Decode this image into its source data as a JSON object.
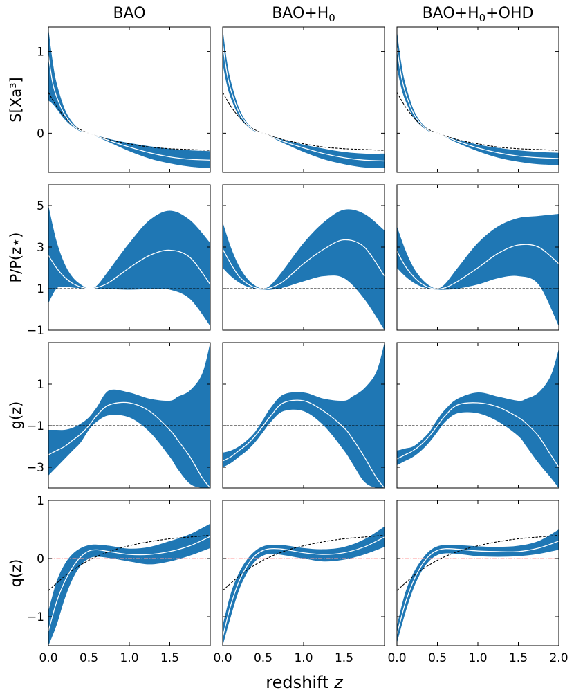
{
  "chart_data": {
    "type": "area",
    "column_titles": [
      {
        "base": "BAO",
        "sub": "",
        "rest": ""
      },
      {
        "base": "BAO+H",
        "sub": "0",
        "rest": ""
      },
      {
        "base": "BAO+H",
        "sub": "0",
        "rest": "+OHD"
      }
    ],
    "xlabel": {
      "text": "redshift ",
      "var": "z"
    },
    "x_ticks": [
      "0.0",
      "0.5",
      "1.0",
      "1.5",
      "2.0"
    ],
    "x_tick_values": [
      0,
      0.5,
      1.0,
      1.5,
      2.0
    ],
    "xlim": [
      0,
      2.0
    ],
    "colors": {
      "band": "#1f77b4",
      "median": "#ffffff",
      "reference": "#000000",
      "zero_line": "#ff9999"
    },
    "rows": [
      {
        "ylabel": "S[Xa³]",
        "ylim": [
          -0.48,
          1.3
        ],
        "y_ticks": [
          "1",
          "0"
        ],
        "y_tick_values": [
          1,
          0
        ],
        "reference": {
          "x": [
            0,
            0.1,
            0.2,
            0.3,
            0.4,
            0.5,
            0.75,
            1.0,
            1.25,
            1.5,
            1.75,
            2.0
          ],
          "y": [
            0.5,
            0.33,
            0.2,
            0.1,
            0.04,
            0.0,
            -0.08,
            -0.13,
            -0.17,
            -0.19,
            -0.2,
            -0.21
          ]
        },
        "panels": [
          {
            "x": [
              0,
              0.05,
              0.1,
              0.2,
              0.3,
              0.4,
              0.5,
              0.75,
              1.0,
              1.25,
              1.5,
              1.75,
              2.0
            ],
            "median": [
              0.95,
              0.63,
              0.45,
              0.23,
              0.1,
              0.03,
              0.0,
              -0.09,
              -0.17,
              -0.24,
              -0.29,
              -0.32,
              -0.33
            ],
            "lower": [
              0.4,
              0.36,
              0.3,
              0.17,
              0.08,
              0.02,
              0.0,
              -0.11,
              -0.22,
              -0.31,
              -0.37,
              -0.41,
              -0.43
            ],
            "upper": [
              1.28,
              0.9,
              0.62,
              0.3,
              0.13,
              0.04,
              0.0,
              -0.07,
              -0.12,
              -0.16,
              -0.19,
              -0.21,
              -0.22
            ]
          },
          {
            "x": [
              0,
              0.05,
              0.1,
              0.2,
              0.3,
              0.4,
              0.5,
              0.75,
              1.0,
              1.25,
              1.5,
              1.75,
              2.0
            ],
            "median": [
              1.1,
              0.75,
              0.53,
              0.26,
              0.11,
              0.03,
              0.0,
              -0.1,
              -0.18,
              -0.25,
              -0.3,
              -0.33,
              -0.34
            ],
            "lower": [
              0.85,
              0.6,
              0.43,
              0.21,
              0.09,
              0.02,
              0.0,
              -0.12,
              -0.23,
              -0.32,
              -0.38,
              -0.42,
              -0.43
            ],
            "upper": [
              1.28,
              0.9,
              0.64,
              0.31,
              0.13,
              0.04,
              0.0,
              -0.08,
              -0.14,
              -0.19,
              -0.23,
              -0.25,
              -0.25
            ]
          },
          {
            "x": [
              0,
              0.05,
              0.1,
              0.2,
              0.3,
              0.4,
              0.5,
              0.75,
              1.0,
              1.25,
              1.5,
              1.75,
              2.0
            ],
            "median": [
              1.05,
              0.72,
              0.51,
              0.25,
              0.11,
              0.03,
              0.0,
              -0.1,
              -0.18,
              -0.24,
              -0.28,
              -0.3,
              -0.31
            ],
            "lower": [
              0.8,
              0.57,
              0.41,
              0.2,
              0.09,
              0.02,
              0.0,
              -0.12,
              -0.22,
              -0.3,
              -0.35,
              -0.38,
              -0.39
            ],
            "upper": [
              1.25,
              0.88,
              0.62,
              0.3,
              0.13,
              0.04,
              0.0,
              -0.08,
              -0.14,
              -0.18,
              -0.21,
              -0.23,
              -0.24
            ]
          }
        ]
      },
      {
        "ylabel": "P/P(z⋆)",
        "ylim": [
          -1,
          6
        ],
        "y_ticks": [
          "5",
          "3",
          "1",
          "−1"
        ],
        "y_tick_values": [
          5,
          3,
          1,
          -1
        ],
        "reference": {
          "x": [
            0,
            2.0
          ],
          "y": [
            1,
            1
          ]
        },
        "panels": [
          {
            "x": [
              0,
              0.1,
              0.2,
              0.3,
              0.4,
              0.5,
              0.6,
              0.75,
              1.0,
              1.25,
              1.5,
              1.75,
              2.0
            ],
            "median": [
              2.6,
              2.0,
              1.55,
              1.25,
              1.08,
              1.0,
              1.05,
              1.3,
              2.0,
              2.6,
              2.85,
              2.5,
              1.2
            ],
            "lower": [
              0.3,
              1.0,
              1.1,
              1.05,
              1.02,
              1.0,
              1.0,
              0.98,
              0.95,
              0.98,
              0.95,
              0.5,
              -0.8
            ],
            "upper": [
              5.0,
              3.3,
              2.2,
              1.55,
              1.2,
              1.0,
              1.15,
              1.9,
              3.2,
              4.3,
              4.75,
              4.3,
              3.2
            ]
          },
          {
            "x": [
              0,
              0.1,
              0.2,
              0.3,
              0.4,
              0.5,
              0.6,
              0.75,
              1.0,
              1.25,
              1.5,
              1.75,
              2.0
            ],
            "median": [
              2.9,
              2.2,
              1.6,
              1.25,
              1.05,
              0.98,
              1.05,
              1.35,
              2.2,
              2.9,
              3.35,
              3.0,
              1.6
            ],
            "lower": [
              2.0,
              1.6,
              1.3,
              1.1,
              1.0,
              0.95,
              0.95,
              1.05,
              1.35,
              1.6,
              1.5,
              0.5,
              -1.0
            ],
            "upper": [
              4.2,
              3.0,
              2.1,
              1.5,
              1.15,
              1.0,
              1.2,
              1.9,
              3.2,
              4.2,
              4.8,
              4.6,
              3.8
            ]
          },
          {
            "x": [
              0,
              0.1,
              0.2,
              0.3,
              0.4,
              0.5,
              0.6,
              0.75,
              1.0,
              1.25,
              1.5,
              1.75,
              2.0
            ],
            "median": [
              2.8,
              2.1,
              1.6,
              1.25,
              1.05,
              0.98,
              1.05,
              1.35,
              2.0,
              2.7,
              3.1,
              3.0,
              2.2
            ],
            "lower": [
              2.0,
              1.6,
              1.3,
              1.1,
              1.0,
              0.95,
              0.95,
              1.0,
              1.2,
              1.5,
              1.6,
              1.2,
              -0.8
            ],
            "upper": [
              4.0,
              2.9,
              2.05,
              1.5,
              1.15,
              1.0,
              1.25,
              2.0,
              3.2,
              4.0,
              4.4,
              4.5,
              4.6
            ]
          }
        ]
      },
      {
        "ylabel": "g(z)",
        "ylim": [
          -4,
          3
        ],
        "y_ticks": [
          "1",
          "−1",
          "−3"
        ],
        "y_tick_values": [
          1,
          -1,
          -3
        ],
        "reference": {
          "x": [
            0,
            2.0
          ],
          "y": [
            -1,
            -1
          ]
        },
        "panels": [
          {
            "x": [
              0,
              0.1,
              0.2,
              0.3,
              0.4,
              0.5,
              0.6,
              0.75,
              1.0,
              1.25,
              1.5,
              1.6,
              1.75,
              1.9,
              2.0
            ],
            "median": [
              -2.4,
              -2.2,
              -2.0,
              -1.7,
              -1.4,
              -1.0,
              -0.5,
              0.0,
              0.1,
              -0.3,
              -1.2,
              -1.7,
              -2.5,
              -3.5,
              -4.0
            ],
            "lower": [
              -3.4,
              -3.0,
              -2.6,
              -2.2,
              -1.8,
              -1.2,
              -0.8,
              -0.5,
              -0.6,
              -1.3,
              -2.5,
              -3.1,
              -3.8,
              -4.0,
              -4.0
            ],
            "upper": [
              -1.2,
              -1.2,
              -1.2,
              -1.1,
              -0.9,
              -0.6,
              -0.1,
              0.7,
              0.6,
              0.3,
              0.2,
              0.4,
              0.7,
              1.5,
              3.0
            ]
          },
          {
            "x": [
              0,
              0.1,
              0.2,
              0.3,
              0.4,
              0.5,
              0.6,
              0.75,
              1.0,
              1.25,
              1.5,
              1.6,
              1.75,
              1.9,
              2.0
            ],
            "median": [
              -2.7,
              -2.5,
              -2.2,
              -1.9,
              -1.5,
              -1.0,
              -0.5,
              0.1,
              0.2,
              -0.3,
              -1.1,
              -1.6,
              -2.5,
              -3.5,
              -4.0
            ],
            "lower": [
              -3.0,
              -2.8,
              -2.5,
              -2.2,
              -1.8,
              -1.3,
              -0.8,
              -0.3,
              -0.3,
              -1.0,
              -2.2,
              -2.8,
              -3.7,
              -4.0,
              -4.0
            ],
            "upper": [
              -2.3,
              -2.2,
              -2.0,
              -1.7,
              -1.3,
              -0.7,
              -0.1,
              0.5,
              0.6,
              0.3,
              0.2,
              0.4,
              0.8,
              1.6,
              3.0
            ]
          },
          {
            "x": [
              0,
              0.1,
              0.2,
              0.3,
              0.4,
              0.5,
              0.6,
              0.75,
              1.0,
              1.25,
              1.5,
              1.6,
              1.75,
              1.9,
              2.0
            ],
            "median": [
              -2.6,
              -2.4,
              -2.2,
              -1.9,
              -1.5,
              -1.0,
              -0.5,
              0.0,
              0.1,
              -0.1,
              -0.6,
              -0.9,
              -1.5,
              -2.4,
              -3.0
            ],
            "lower": [
              -2.9,
              -2.7,
              -2.5,
              -2.2,
              -1.8,
              -1.3,
              -0.8,
              -0.4,
              -0.4,
              -0.8,
              -1.5,
              -2.0,
              -2.8,
              -3.5,
              -4.0
            ],
            "upper": [
              -2.2,
              -2.1,
              -2.0,
              -1.7,
              -1.3,
              -0.7,
              -0.2,
              0.3,
              0.6,
              0.4,
              0.2,
              0.3,
              0.6,
              1.4,
              2.7
            ]
          }
        ]
      },
      {
        "ylabel": "q(z)",
        "ylim": [
          -1.5,
          1.0
        ],
        "y_ticks": [
          "1",
          "0",
          "−1"
        ],
        "y_tick_values": [
          1,
          0,
          -1
        ],
        "reference": {
          "x": [
            0,
            0.25,
            0.5,
            0.75,
            1.0,
            1.25,
            1.5,
            1.75,
            2.0
          ],
          "y": [
            -0.55,
            -0.25,
            -0.03,
            0.12,
            0.22,
            0.29,
            0.34,
            0.37,
            0.4
          ]
        },
        "zero_line": {
          "x": [
            0,
            2.0
          ],
          "y": [
            0,
            0
          ]
        },
        "panels": [
          {
            "x": [
              0,
              0.1,
              0.2,
              0.3,
              0.4,
              0.5,
              0.6,
              0.75,
              1.0,
              1.25,
              1.5,
              1.75,
              2.0
            ],
            "median": [
              -1.25,
              -0.75,
              -0.4,
              -0.15,
              0.03,
              0.13,
              0.15,
              0.12,
              0.07,
              0.07,
              0.12,
              0.22,
              0.38
            ],
            "lower": [
              -1.5,
              -1.15,
              -0.7,
              -0.35,
              -0.12,
              0.0,
              0.03,
              0.01,
              -0.05,
              -0.1,
              -0.05,
              0.05,
              0.18
            ],
            "upper": [
              -0.9,
              -0.4,
              -0.1,
              0.08,
              0.18,
              0.23,
              0.24,
              0.22,
              0.17,
              0.2,
              0.3,
              0.42,
              0.6
            ]
          },
          {
            "x": [
              0,
              0.1,
              0.2,
              0.3,
              0.4,
              0.5,
              0.6,
              0.75,
              1.0,
              1.25,
              1.5,
              1.75,
              2.0
            ],
            "median": [
              -1.35,
              -0.8,
              -0.4,
              -0.13,
              0.05,
              0.14,
              0.17,
              0.16,
              0.1,
              0.07,
              0.1,
              0.2,
              0.37
            ],
            "lower": [
              -1.5,
              -1.0,
              -0.55,
              -0.25,
              -0.05,
              0.05,
              0.08,
              0.06,
              0.0,
              -0.05,
              -0.02,
              0.07,
              0.2
            ],
            "upper": [
              -1.15,
              -0.6,
              -0.25,
              -0.02,
              0.13,
              0.21,
              0.23,
              0.23,
              0.18,
              0.16,
              0.2,
              0.33,
              0.55
            ]
          },
          {
            "x": [
              0,
              0.1,
              0.2,
              0.3,
              0.4,
              0.5,
              0.6,
              0.75,
              1.0,
              1.25,
              1.5,
              1.75,
              2.0
            ],
            "median": [
              -1.3,
              -0.78,
              -0.4,
              -0.13,
              0.05,
              0.14,
              0.17,
              0.16,
              0.13,
              0.12,
              0.12,
              0.18,
              0.3
            ],
            "lower": [
              -1.45,
              -0.95,
              -0.53,
              -0.23,
              -0.04,
              0.06,
              0.09,
              0.08,
              0.04,
              0.03,
              0.04,
              0.08,
              0.15
            ],
            "upper": [
              -1.15,
              -0.6,
              -0.26,
              -0.03,
              0.13,
              0.21,
              0.23,
              0.23,
              0.21,
              0.2,
              0.22,
              0.3,
              0.5
            ]
          }
        ]
      }
    ]
  }
}
